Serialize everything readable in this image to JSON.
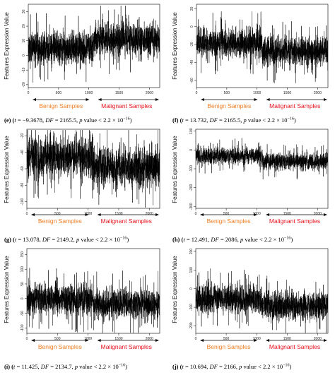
{
  "figure": {
    "ylabel": "Features Expression Value",
    "benign_label": "Benign Samples",
    "malignant_label": "Malignant Samples"
  },
  "chart_data": [
    {
      "id": "e",
      "type": "line",
      "xticks": [
        0,
        500,
        1000,
        1500,
        2000
      ],
      "xlim": [
        0,
        2170
      ],
      "yticks": [
        -20,
        -10,
        0,
        10,
        20,
        30
      ],
      "ylim": [
        -22,
        35
      ],
      "series": [
        {
          "n_points": 2168,
          "benign_n": 1080,
          "benign_mean": 5,
          "malignant_mean": 11,
          "spread": 5.5
        }
      ],
      "caption": {
        "label": "(e)",
        "t_name": "t",
        "t": "= −9.3678,",
        "df_name": "DF",
        "df": "= 2165.5,",
        "p_name": "p",
        "p": " value < 2.2 × 10",
        "exp": "−16",
        "close": ")"
      }
    },
    {
      "id": "f",
      "type": "line",
      "xticks": [
        0,
        500,
        1000,
        1500,
        2000
      ],
      "xlim": [
        0,
        2170
      ],
      "yticks": [
        -60,
        -40,
        -20,
        0,
        20
      ],
      "ylim": [
        -68,
        25
      ],
      "series": [
        {
          "n_points": 2168,
          "benign_n": 1080,
          "benign_mean": -18,
          "malignant_mean": -28,
          "spread": 8
        }
      ],
      "caption": {
        "label": "(f)",
        "t_name": "t",
        "t": "= 13.732,",
        "df_name": "DF",
        "df": "= 2165.5,",
        "p_name": "p",
        "p": " value < 2.2 × 10",
        "exp": "−16",
        "close": ")"
      }
    },
    {
      "id": "g",
      "type": "line",
      "xticks": [
        0,
        500,
        1000,
        1500,
        2000
      ],
      "xlim": [
        0,
        2170
      ],
      "yticks": [
        -100,
        -80,
        -60,
        -40,
        -20
      ],
      "ylim": [
        -108,
        -12
      ],
      "series": [
        {
          "n_points": 2168,
          "benign_n": 1080,
          "benign_mean": -45,
          "malignant_mean": -58,
          "spread": 12
        }
      ],
      "caption": {
        "label": "(g)",
        "t_name": "t",
        "t": "= 13.078,",
        "df_name": "DF",
        "df": "= 2149.2,",
        "p_name": "p",
        "p": " value < 2.2 × 10",
        "exp": "−16",
        "close": ")"
      }
    },
    {
      "id": "h",
      "type": "line",
      "xticks": [
        0,
        500,
        1000,
        1500,
        2000
      ],
      "xlim": [
        0,
        2170
      ],
      "yticks": [
        -300,
        -200,
        -100,
        0,
        100
      ],
      "ylim": [
        -310,
        110
      ],
      "series": [
        {
          "n_points": 2168,
          "benign_n": 1080,
          "benign_mean": -30,
          "malignant_mean": -60,
          "spread": 22
        }
      ],
      "caption": {
        "label": "(h)",
        "t_name": "t",
        "t": "= 12.491,",
        "df_name": "DF",
        "df": "= 2086,",
        "p_name": "p",
        "p": " value < 2.2 × 10",
        "exp": "−16",
        "close": ")"
      }
    },
    {
      "id": "i",
      "type": "line",
      "xticks": [
        0,
        500,
        1000,
        1500,
        2000
      ],
      "xlim": [
        0,
        2170
      ],
      "yticks": [
        -100,
        -50,
        0,
        50,
        100,
        150
      ],
      "ylim": [
        -118,
        170
      ],
      "series": [
        {
          "n_points": 2168,
          "benign_n": 1080,
          "benign_mean": -2,
          "malignant_mean": -18,
          "spread": 26
        }
      ],
      "caption": {
        "label": "(i)",
        "t_name": "t",
        "t": "= 11.425,",
        "df_name": "DF",
        "df": "= 2134.7,",
        "p_name": "p",
        "p": " value < 2.2 × 10",
        "exp": "−16",
        "close": ")"
      }
    },
    {
      "id": "j",
      "type": "line",
      "xticks": [
        0,
        500,
        1000,
        1500,
        2000
      ],
      "xlim": [
        0,
        2170
      ],
      "yticks": [
        -200,
        -100,
        0,
        100,
        200
      ],
      "ylim": [
        -240,
        215
      ],
      "series": [
        {
          "n_points": 2168,
          "benign_n": 1080,
          "benign_mean": -55,
          "malignant_mean": -95,
          "spread": 38
        }
      ],
      "caption": {
        "label": "(j)",
        "t_name": "t",
        "t": "= 10.694,",
        "df_name": "DF",
        "df": "= 2166,",
        "p_name": "p",
        "p": " value < 2.2 × 10",
        "exp": "−16",
        "close": ")"
      }
    }
  ]
}
